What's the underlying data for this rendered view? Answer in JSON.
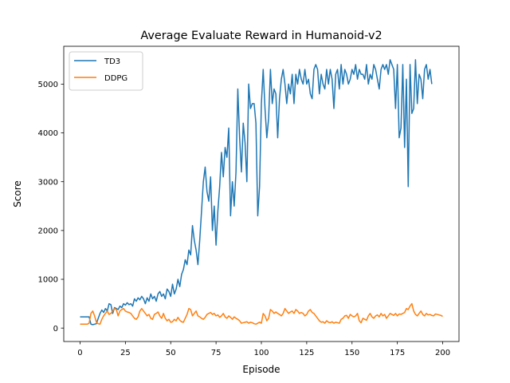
{
  "chart_data": {
    "type": "line",
    "title": "Average Evaluate Reward in Humanoid-v2",
    "xlabel": "Episode",
    "ylabel": "Score",
    "xlim": [
      -9,
      209
    ],
    "ylim": [
      -275,
      5775
    ],
    "xticks": [
      0,
      25,
      50,
      75,
      100,
      125,
      150,
      175,
      200
    ],
    "yticks": [
      0,
      1000,
      2000,
      3000,
      4000,
      5000
    ],
    "grid": false,
    "legend_position": "top-left",
    "series": [
      {
        "name": "TD3",
        "color": "#1f77b4",
        "values": [
          230,
          230,
          230,
          230,
          230,
          230,
          80,
          70,
          80,
          90,
          200,
          300,
          370,
          320,
          400,
          350,
          500,
          480,
          300,
          420,
          400,
          380,
          450,
          420,
          500,
          470,
          520,
          480,
          500,
          450,
          600,
          550,
          620,
          580,
          650,
          600,
          500,
          620,
          550,
          700,
          600,
          650,
          550,
          700,
          750,
          650,
          700,
          600,
          800,
          750,
          650,
          900,
          700,
          800,
          1000,
          850,
          1100,
          1200,
          1400,
          1300,
          1600,
          1500,
          2100,
          1800,
          1600,
          1300,
          1800,
          2400,
          3000,
          3300,
          2800,
          2600,
          3100,
          2000,
          2500,
          1700,
          2400,
          2900,
          3600,
          3100,
          3700,
          3500,
          4100,
          2300,
          3000,
          2500,
          3200,
          4900,
          3900,
          3200,
          4200,
          3800,
          3000,
          5000,
          4500,
          4600,
          4600,
          4200,
          2300,
          2900,
          4600,
          5300,
          4500,
          3900,
          4300,
          5300,
          4600,
          4900,
          4800,
          3900,
          4700,
          5100,
          5300,
          5000,
          4600,
          5000,
          4800,
          5200,
          4600,
          5200,
          5000,
          5300,
          5100,
          5000,
          5300,
          5000,
          5100,
          4800,
          4700,
          5300,
          5400,
          5300,
          4800,
          5200,
          5000,
          4900,
          5300,
          5000,
          5300,
          5100,
          4500,
          5200,
          5300,
          4900,
          5400,
          5000,
          5300,
          5200,
          5000,
          5100,
          5300,
          5200,
          5400,
          5100,
          5300,
          5200,
          5200,
          5100,
          5400,
          5000,
          5200,
          5100,
          5400,
          5300,
          5100,
          4900,
          5300,
          5400,
          5300,
          5400,
          5200,
          5500,
          5400,
          5300,
          4500,
          5400,
          3900,
          4100,
          5400,
          3700,
          5100,
          2900,
          5400,
          4400,
          4500,
          5500,
          4600,
          5200,
          5100,
          4700,
          5300,
          5400,
          5100,
          5300,
          5000
        ]
      },
      {
        "name": "DDPG",
        "color": "#ff7f0e",
        "values": [
          80,
          80,
          80,
          80,
          80,
          100,
          300,
          350,
          250,
          120,
          90,
          80,
          180,
          250,
          300,
          350,
          280,
          300,
          350,
          400,
          380,
          250,
          350,
          380,
          400,
          350,
          330,
          320,
          300,
          250,
          200,
          180,
          230,
          350,
          400,
          350,
          300,
          250,
          280,
          200,
          180,
          280,
          300,
          330,
          250,
          200,
          300,
          200,
          150,
          180,
          120,
          130,
          180,
          150,
          220,
          160,
          130,
          120,
          200,
          280,
          400,
          380,
          250,
          300,
          350,
          250,
          230,
          200,
          180,
          220,
          280,
          300,
          320,
          280,
          300,
          250,
          270,
          220,
          250,
          300,
          230,
          200,
          250,
          220,
          180,
          230,
          200,
          180,
          150,
          100,
          110,
          120,
          130,
          100,
          120,
          110,
          90,
          80,
          100,
          120,
          100,
          300,
          250,
          150,
          200,
          380,
          350,
          300,
          330,
          300,
          280,
          250,
          300,
          400,
          350,
          300,
          330,
          350,
          300,
          380,
          350,
          300,
          320,
          300,
          250,
          280,
          350,
          380,
          320,
          300,
          250,
          200,
          150,
          120,
          130,
          100,
          150,
          120,
          110,
          130,
          100,
          120,
          110,
          100,
          180,
          200,
          250,
          260,
          200,
          280,
          250,
          230,
          250,
          300,
          150,
          110,
          200,
          180,
          160,
          250,
          300,
          230,
          200,
          250,
          270,
          230,
          300,
          250,
          280,
          200,
          250,
          300,
          280,
          260,
          300,
          250,
          290,
          280,
          300,
          320,
          400,
          380,
          450,
          500,
          350,
          280,
          250,
          300,
          350,
          280,
          250,
          300,
          270,
          280,
          260,
          250,
          290,
          280,
          270,
          260,
          240
        ]
      }
    ]
  }
}
